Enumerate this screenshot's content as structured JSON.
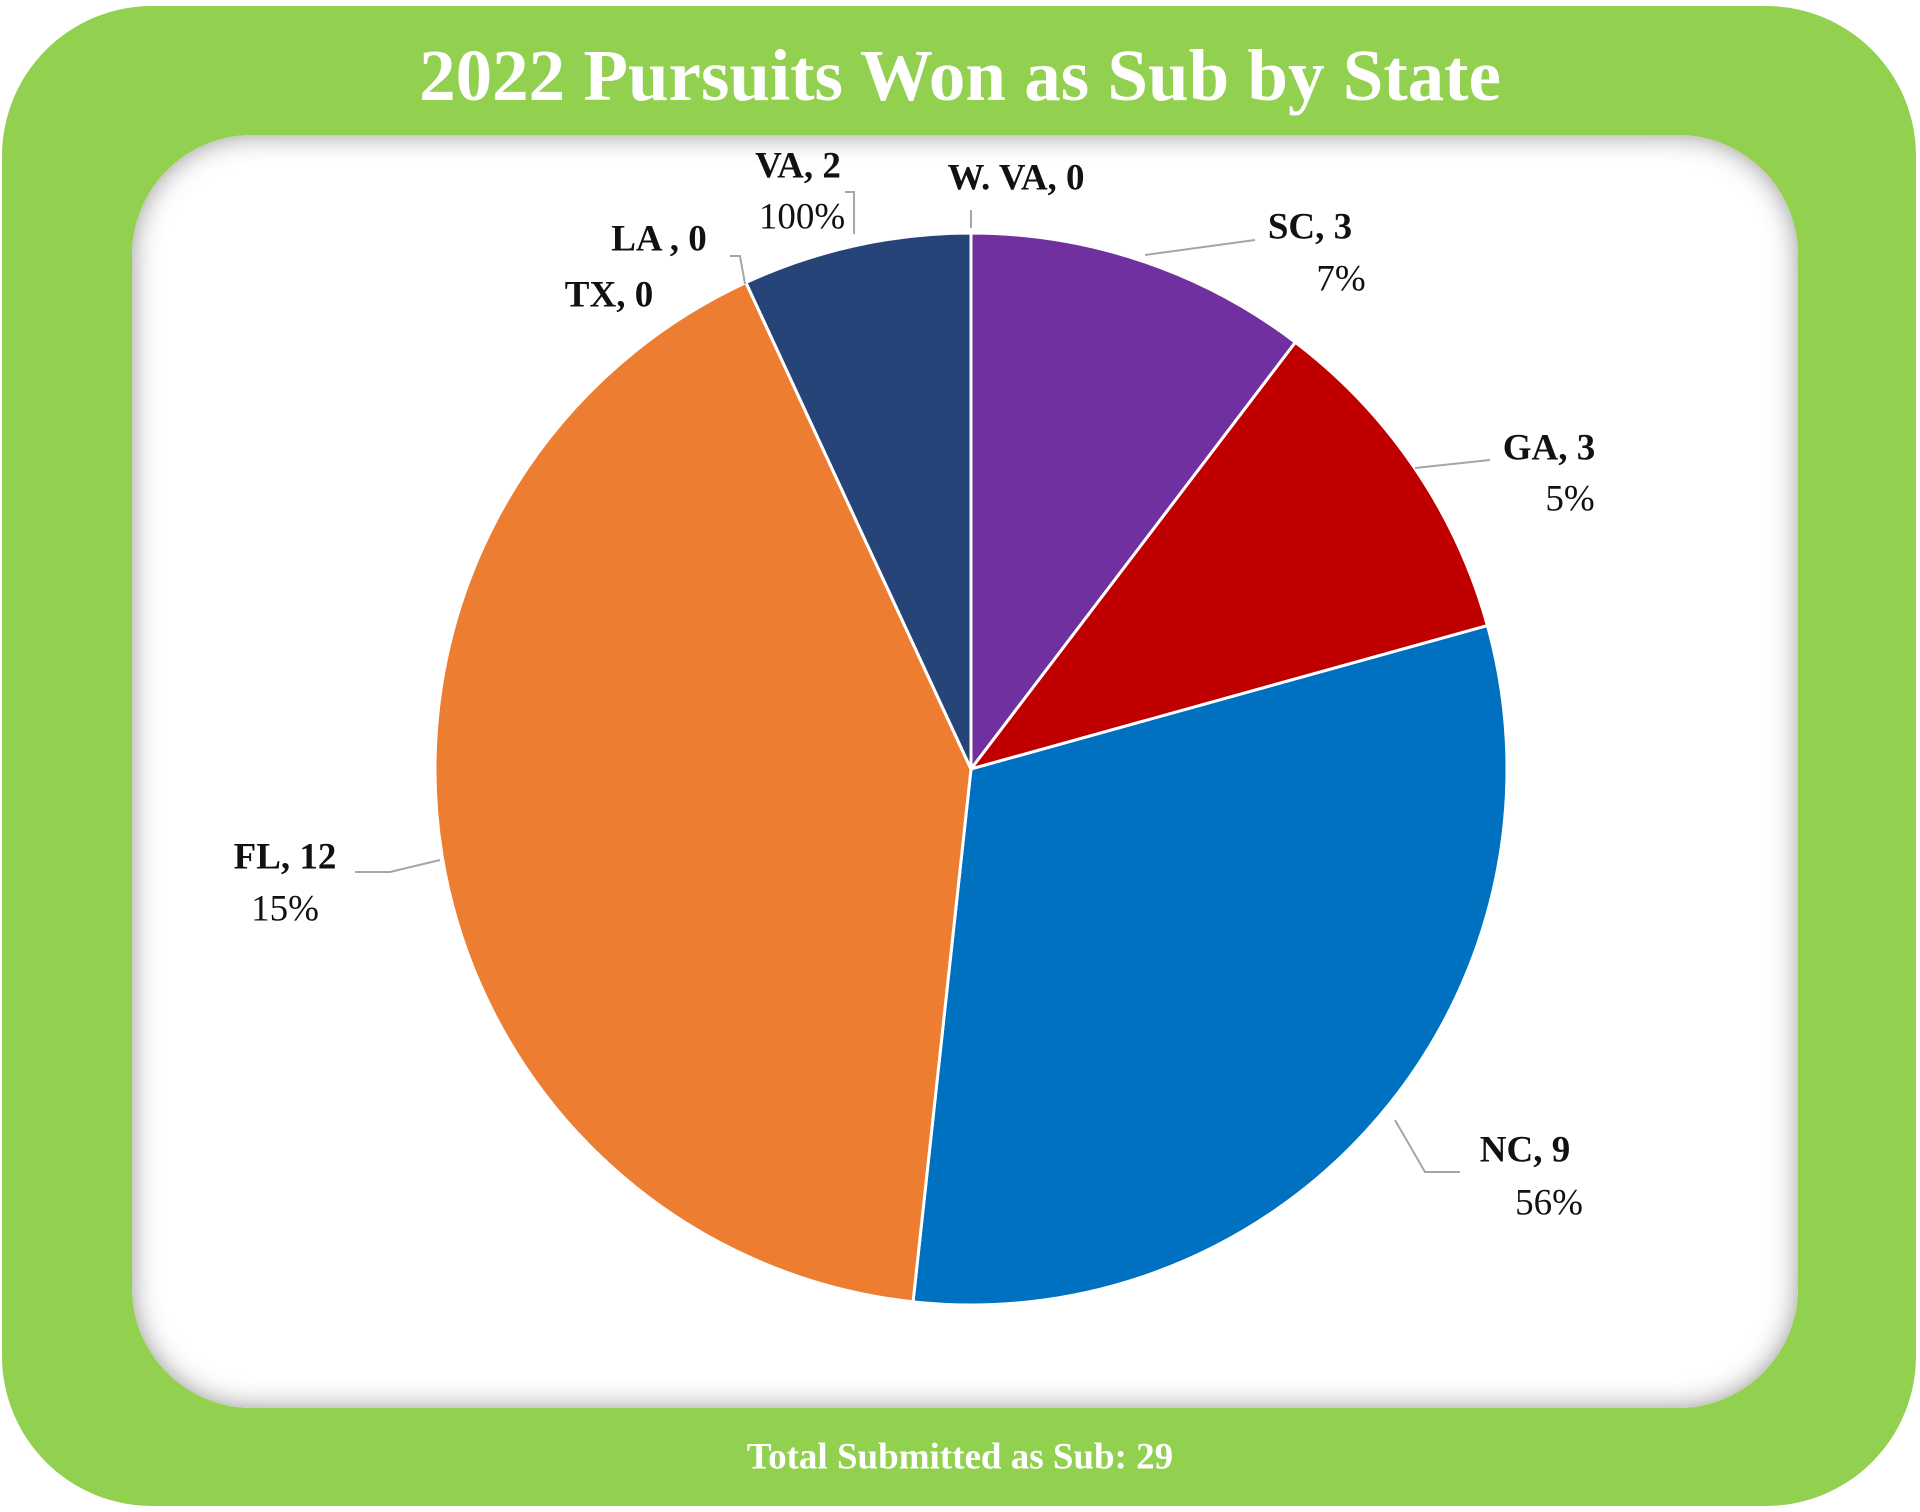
{
  "chart_data": {
    "type": "pie",
    "title": "2022 Pursuits Won as Sub by State",
    "categories": [
      "W. VA",
      "SC",
      "GA",
      "NC",
      "FL",
      "TX",
      "LA",
      "VA"
    ],
    "values": [
      0,
      3,
      3,
      9,
      12,
      0,
      0,
      2
    ],
    "value_labels": [
      "W. VA, 0",
      "SC, 3",
      "GA, 3",
      "NC, 9",
      "FL, 12",
      "TX, 0",
      "LA , 0",
      "VA, 2"
    ],
    "percent_labels": [
      null,
      "7%",
      "5%",
      "56%",
      "15%",
      null,
      null,
      "100%"
    ],
    "colors": [
      "#5b9bd5",
      "#7030a0",
      "#c00000",
      "#0070c0",
      "#ed7d31",
      "#a5a5a5",
      "#ffc000",
      "#264478"
    ],
    "footnote": "Total Submitted as Sub: 29"
  }
}
